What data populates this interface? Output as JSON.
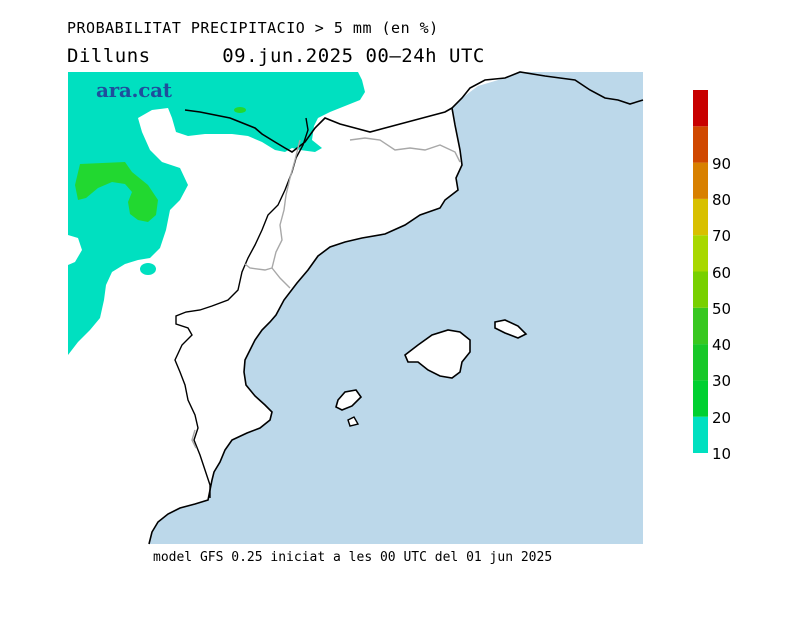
{
  "header": {
    "title": "PROBABILITAT PRECIPITACIO > 5 mm (en %)",
    "day": "Dilluns",
    "datetime": "09.jun.2025 00–24h UTC"
  },
  "logo": {
    "text": "ara.cat"
  },
  "footer": {
    "text": "model GFS 0.25 iniciat a les 00 UTC del 01 jun 2025"
  },
  "legend": {
    "levels": [
      {
        "label": "10",
        "color": "#00e0c0"
      },
      {
        "label": "20",
        "color": "#00d030"
      },
      {
        "label": "30",
        "color": "#18c828"
      },
      {
        "label": "40",
        "color": "#38c820"
      },
      {
        "label": "50",
        "color": "#78d000"
      },
      {
        "label": "60",
        "color": "#a8d800"
      },
      {
        "label": "70",
        "color": "#d8c000"
      },
      {
        "label": "80",
        "color": "#d88000"
      },
      {
        "label": "90",
        "color": "#d04800"
      },
      {
        "label": "",
        "color": "#c80000"
      }
    ]
  },
  "colors": {
    "sea": "#bcd8ea",
    "land": "#ffffff",
    "prob_10": "#00e0c0",
    "prob_20": "#22d830",
    "border": "#000000",
    "region_border": "#a8a8a8"
  }
}
